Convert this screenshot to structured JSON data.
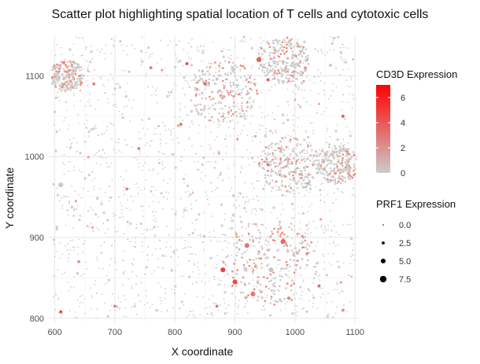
{
  "chart_data": {
    "type": "scatter",
    "title": "Scatter plot highlighting spatial location of T cells and cytotoxic cells",
    "xlabel": "X coordinate",
    "ylabel": "Y coordinate",
    "xlim": [
      590,
      1105
    ],
    "ylim": [
      795,
      1150
    ],
    "x_ticks": [
      600,
      700,
      800,
      900,
      1000,
      1100
    ],
    "y_ticks": [
      800,
      900,
      1000,
      1100
    ],
    "x_tick_labels": [
      "600",
      "700",
      "800",
      "900",
      "1000",
      "1100"
    ],
    "y_tick_labels": [
      "800",
      "900",
      "1000",
      "1100"
    ],
    "grid": true,
    "color_legend": {
      "title": "CD3D Expression",
      "ticks": [
        0,
        2,
        4,
        6
      ],
      "tick_labels": [
        "0",
        "2",
        "4",
        "6"
      ],
      "range": [
        0,
        7
      ],
      "low_color": "#cccccc",
      "high_color": "#ff0000"
    },
    "size_legend": {
      "title": "PRF1 Expression",
      "values": [
        0.0,
        2.5,
        5.0,
        7.5
      ],
      "labels": [
        "0.0",
        "2.5",
        "5.0",
        "7.5"
      ]
    },
    "points": [
      {
        "x": 655,
        "y": 1100,
        "cd3d": 0.3,
        "prf1": 0.0
      },
      {
        "x": 665,
        "y": 1090,
        "cd3d": 2.5,
        "prf1": 2.5
      },
      {
        "x": 760,
        "y": 1110,
        "cd3d": 3.0,
        "prf1": 2.5
      },
      {
        "x": 820,
        "y": 1115,
        "cd3d": 4.5,
        "prf1": 2.5
      },
      {
        "x": 850,
        "y": 1090,
        "cd3d": 3.5,
        "prf1": 2.5
      },
      {
        "x": 940,
        "y": 1120,
        "cd3d": 3.8,
        "prf1": 5.0
      },
      {
        "x": 955,
        "y": 1095,
        "cd3d": 4.0,
        "prf1": 2.5
      },
      {
        "x": 1000,
        "y": 1070,
        "cd3d": 6.5,
        "prf1": 0.0
      },
      {
        "x": 1040,
        "y": 1065,
        "cd3d": 6.8,
        "prf1": 0.0
      },
      {
        "x": 810,
        "y": 1040,
        "cd3d": 3.0,
        "prf1": 2.5
      },
      {
        "x": 740,
        "y": 1010,
        "cd3d": 2.5,
        "prf1": 2.5
      },
      {
        "x": 955,
        "y": 990,
        "cd3d": 3.0,
        "prf1": 2.5
      },
      {
        "x": 1080,
        "y": 1050,
        "cd3d": 4.0,
        "prf1": 2.5
      },
      {
        "x": 720,
        "y": 960,
        "cd3d": 2.5,
        "prf1": 2.5
      },
      {
        "x": 830,
        "y": 955,
        "cd3d": 5.5,
        "prf1": 0.0
      },
      {
        "x": 610,
        "y": 965,
        "cd3d": 0.2,
        "prf1": 5.0
      },
      {
        "x": 920,
        "y": 890,
        "cd3d": 3.0,
        "prf1": 5.0
      },
      {
        "x": 980,
        "y": 895,
        "cd3d": 3.5,
        "prf1": 5.0
      },
      {
        "x": 1020,
        "y": 880,
        "cd3d": 2.0,
        "prf1": 2.5
      },
      {
        "x": 880,
        "y": 860,
        "cd3d": 5.0,
        "prf1": 5.0
      },
      {
        "x": 900,
        "y": 845,
        "cd3d": 4.5,
        "prf1": 5.0
      },
      {
        "x": 930,
        "y": 830,
        "cd3d": 3.0,
        "prf1": 5.0
      },
      {
        "x": 990,
        "y": 825,
        "cd3d": 2.5,
        "prf1": 2.5
      },
      {
        "x": 1040,
        "y": 840,
        "cd3d": 3.5,
        "prf1": 2.5
      },
      {
        "x": 960,
        "y": 860,
        "cd3d": 0.3,
        "prf1": 5.0
      },
      {
        "x": 640,
        "y": 870,
        "cd3d": 2.0,
        "prf1": 2.5
      },
      {
        "x": 610,
        "y": 808,
        "cd3d": 5.0,
        "prf1": 2.5
      },
      {
        "x": 700,
        "y": 815,
        "cd3d": 2.5,
        "prf1": 2.5
      },
      {
        "x": 870,
        "y": 815,
        "cd3d": 3.0,
        "prf1": 2.5
      },
      {
        "x": 1080,
        "y": 810,
        "cd3d": 2.0,
        "prf1": 2.5
      }
    ]
  }
}
